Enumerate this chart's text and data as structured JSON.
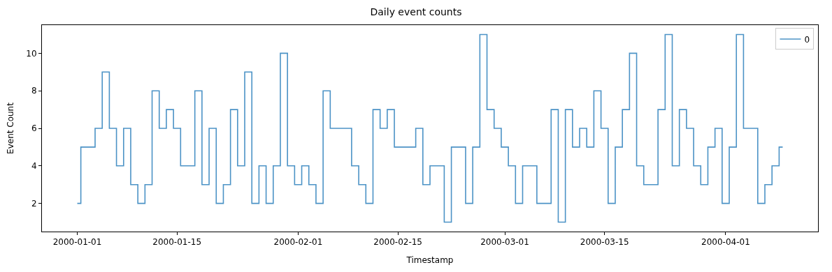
{
  "chart_data": {
    "type": "step",
    "title": "Daily event counts",
    "xlabel": "Timestamp",
    "ylabel": "Event Count",
    "x": [
      "2000-01-01",
      "2000-01-02",
      "2000-01-03",
      "2000-01-04",
      "2000-01-05",
      "2000-01-06",
      "2000-01-07",
      "2000-01-08",
      "2000-01-09",
      "2000-01-10",
      "2000-01-11",
      "2000-01-12",
      "2000-01-13",
      "2000-01-14",
      "2000-01-15",
      "2000-01-16",
      "2000-01-17",
      "2000-01-18",
      "2000-01-19",
      "2000-01-20",
      "2000-01-21",
      "2000-01-22",
      "2000-01-23",
      "2000-01-24",
      "2000-01-25",
      "2000-01-26",
      "2000-01-27",
      "2000-01-28",
      "2000-01-29",
      "2000-01-30",
      "2000-01-31",
      "2000-02-01",
      "2000-02-02",
      "2000-02-03",
      "2000-02-04",
      "2000-02-05",
      "2000-02-06",
      "2000-02-07",
      "2000-02-08",
      "2000-02-09",
      "2000-02-10",
      "2000-02-11",
      "2000-02-12",
      "2000-02-13",
      "2000-02-14",
      "2000-02-15",
      "2000-02-16",
      "2000-02-17",
      "2000-02-18",
      "2000-02-19",
      "2000-02-20",
      "2000-02-21",
      "2000-02-22",
      "2000-02-23",
      "2000-02-24",
      "2000-02-25",
      "2000-02-26",
      "2000-02-27",
      "2000-02-28",
      "2000-02-29",
      "2000-03-01",
      "2000-03-02",
      "2000-03-03",
      "2000-03-04",
      "2000-03-05",
      "2000-03-06",
      "2000-03-07",
      "2000-03-08",
      "2000-03-09",
      "2000-03-10",
      "2000-03-11",
      "2000-03-12",
      "2000-03-13",
      "2000-03-14",
      "2000-03-15",
      "2000-03-16",
      "2000-03-17",
      "2000-03-18",
      "2000-03-19",
      "2000-03-20",
      "2000-03-21",
      "2000-03-22",
      "2000-03-23",
      "2000-03-24",
      "2000-03-25",
      "2000-03-26",
      "2000-03-27",
      "2000-03-28",
      "2000-03-29",
      "2000-03-30",
      "2000-03-31",
      "2000-04-01",
      "2000-04-02",
      "2000-04-03",
      "2000-04-04",
      "2000-04-05",
      "2000-04-06",
      "2000-04-07",
      "2000-04-08",
      "2000-04-09"
    ],
    "series": [
      {
        "name": "0",
        "color": "#4c93c6",
        "values": [
          2,
          5,
          5,
          6,
          9,
          6,
          4,
          6,
          3,
          2,
          3,
          8,
          6,
          7,
          6,
          4,
          4,
          8,
          3,
          6,
          2,
          3,
          7,
          4,
          9,
          2,
          4,
          2,
          4,
          10,
          4,
          3,
          4,
          3,
          2,
          8,
          6,
          6,
          6,
          4,
          3,
          2,
          7,
          6,
          7,
          5,
          5,
          5,
          6,
          3,
          4,
          4,
          1,
          5,
          5,
          2,
          5,
          11,
          7,
          6,
          5,
          4,
          2,
          4,
          4,
          2,
          2,
          7,
          1,
          7,
          5,
          6,
          5,
          8,
          6,
          2,
          5,
          7,
          10,
          4,
          3,
          3,
          7,
          11,
          4,
          7,
          6,
          4,
          3,
          5,
          6,
          2,
          5,
          11,
          6,
          6,
          2,
          3,
          4,
          5
        ]
      }
    ],
    "xlim": [
      "1999-12-27T01:00",
      "2000-04-13T23:00"
    ],
    "xticks": [
      {
        "value": "2000-01-01",
        "label": "2000-01-01"
      },
      {
        "value": "2000-01-15",
        "label": "2000-01-15"
      },
      {
        "value": "2000-02-01",
        "label": "2000-02-01"
      },
      {
        "value": "2000-02-15",
        "label": "2000-02-15"
      },
      {
        "value": "2000-03-01",
        "label": "2000-03-01"
      },
      {
        "value": "2000-03-15",
        "label": "2000-03-15"
      },
      {
        "value": "2000-04-01",
        "label": "2000-04-01"
      }
    ],
    "ylim": [
      0.5,
      11.5
    ],
    "yticks": [
      2,
      4,
      6,
      8,
      10
    ],
    "legend": "top right"
  }
}
